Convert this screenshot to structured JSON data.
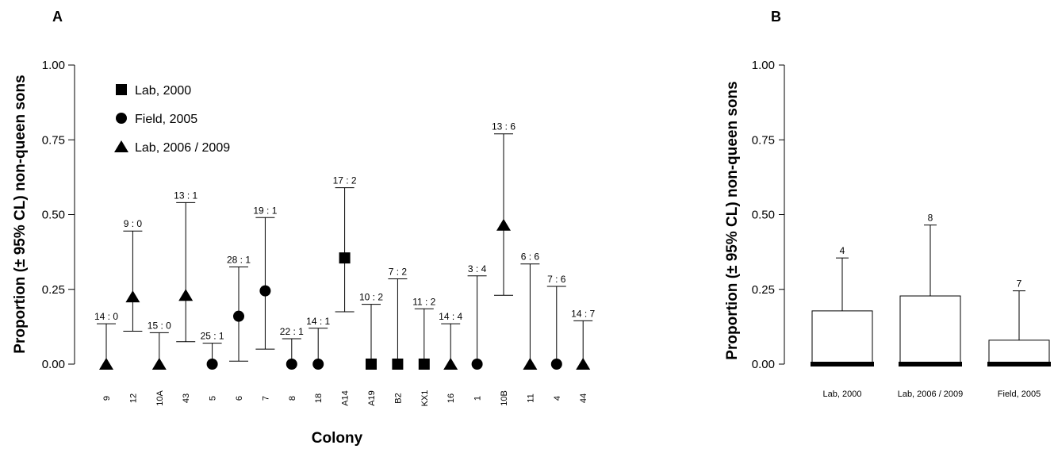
{
  "chart_data": [
    {
      "panel": "A",
      "type": "scatter",
      "ylabel": "Proportion (± 95% CL) non-queen sons",
      "xlabel": "Colony",
      "ylim": [
        0,
        1
      ],
      "yticks": [
        "0.00",
        "0.25",
        "0.50",
        "0.75",
        "1.00"
      ],
      "legend": {
        "placement": "top-left",
        "entries": [
          {
            "shape": "square",
            "label": "Lab, 2000"
          },
          {
            "shape": "circle",
            "label": "Field, 2005"
          },
          {
            "shape": "triangle",
            "label": "Lab, 2006 / 2009"
          }
        ]
      },
      "points": [
        {
          "colony": "9",
          "shape": "triangle",
          "value": 0.0,
          "upper": 0.135,
          "lower": 0.0,
          "label": "14 : 0"
        },
        {
          "colony": "12",
          "shape": "triangle",
          "value": 0.225,
          "upper": 0.445,
          "lower": 0.11,
          "label": "9 : 0"
        },
        {
          "colony": "10A",
          "shape": "triangle",
          "value": 0.0,
          "upper": 0.105,
          "lower": 0.0,
          "label": "15 : 0"
        },
        {
          "colony": "43",
          "shape": "triangle",
          "value": 0.23,
          "upper": 0.54,
          "lower": 0.075,
          "label": "13 : 1"
        },
        {
          "colony": "5",
          "shape": "circle",
          "value": 0.0,
          "upper": 0.07,
          "lower": 0.0,
          "label": "25 : 1"
        },
        {
          "colony": "6",
          "shape": "circle",
          "value": 0.16,
          "upper": 0.325,
          "lower": 0.01,
          "label": "28 : 1"
        },
        {
          "colony": "7",
          "shape": "circle",
          "value": 0.245,
          "upper": 0.49,
          "lower": 0.05,
          "label": "19 : 1"
        },
        {
          "colony": "8",
          "shape": "circle",
          "value": 0.0,
          "upper": 0.085,
          "lower": 0.0,
          "label": "22 : 1"
        },
        {
          "colony": "18",
          "shape": "circle",
          "value": 0.0,
          "upper": 0.12,
          "lower": 0.0,
          "label": "14 : 1"
        },
        {
          "colony": "A14",
          "shape": "square",
          "value": 0.355,
          "upper": 0.59,
          "lower": 0.175,
          "label": "17 : 2"
        },
        {
          "colony": "A19",
          "shape": "square",
          "value": 0.0,
          "upper": 0.2,
          "lower": 0.0,
          "label": "10 : 2"
        },
        {
          "colony": "B2",
          "shape": "square",
          "value": 0.0,
          "upper": 0.285,
          "lower": 0.0,
          "label": "7 : 2"
        },
        {
          "colony": "KX1",
          "shape": "square",
          "value": 0.0,
          "upper": 0.185,
          "lower": 0.0,
          "label": "11 : 2"
        },
        {
          "colony": "16",
          "shape": "triangle",
          "value": 0.0,
          "upper": 0.135,
          "lower": 0.0,
          "label": "14 : 4"
        },
        {
          "colony": "1",
          "shape": "circle",
          "value": 0.0,
          "upper": 0.295,
          "lower": 0.0,
          "label": "3 : 4"
        },
        {
          "colony": "10B",
          "shape": "triangle",
          "value": 0.465,
          "upper": 0.77,
          "lower": 0.23,
          "label": "13 : 6"
        },
        {
          "colony": "11",
          "shape": "triangle",
          "value": 0.0,
          "upper": 0.335,
          "lower": 0.0,
          "label": "6 : 6"
        },
        {
          "colony": "4",
          "shape": "circle",
          "value": 0.0,
          "upper": 0.26,
          "lower": 0.0,
          "label": "7 : 6"
        },
        {
          "colony": "44",
          "shape": "triangle",
          "value": 0.0,
          "upper": 0.145,
          "lower": 0.0,
          "label": "14 : 7"
        }
      ]
    },
    {
      "panel": "B",
      "type": "bar",
      "ylabel": "Proportion (± 95% CL) non-queen sons",
      "ylim": [
        0,
        1
      ],
      "yticks": [
        "0.00",
        "0.25",
        "0.50",
        "0.75",
        "1.00"
      ],
      "categories": [
        "Lab, 2000",
        "Lab, 2006 / 2009",
        "Field, 2005"
      ],
      "values": [
        0.178,
        0.228,
        0.08
      ],
      "upper": [
        0.355,
        0.465,
        0.245
      ],
      "counts": [
        "4",
        "8",
        "7"
      ]
    }
  ]
}
